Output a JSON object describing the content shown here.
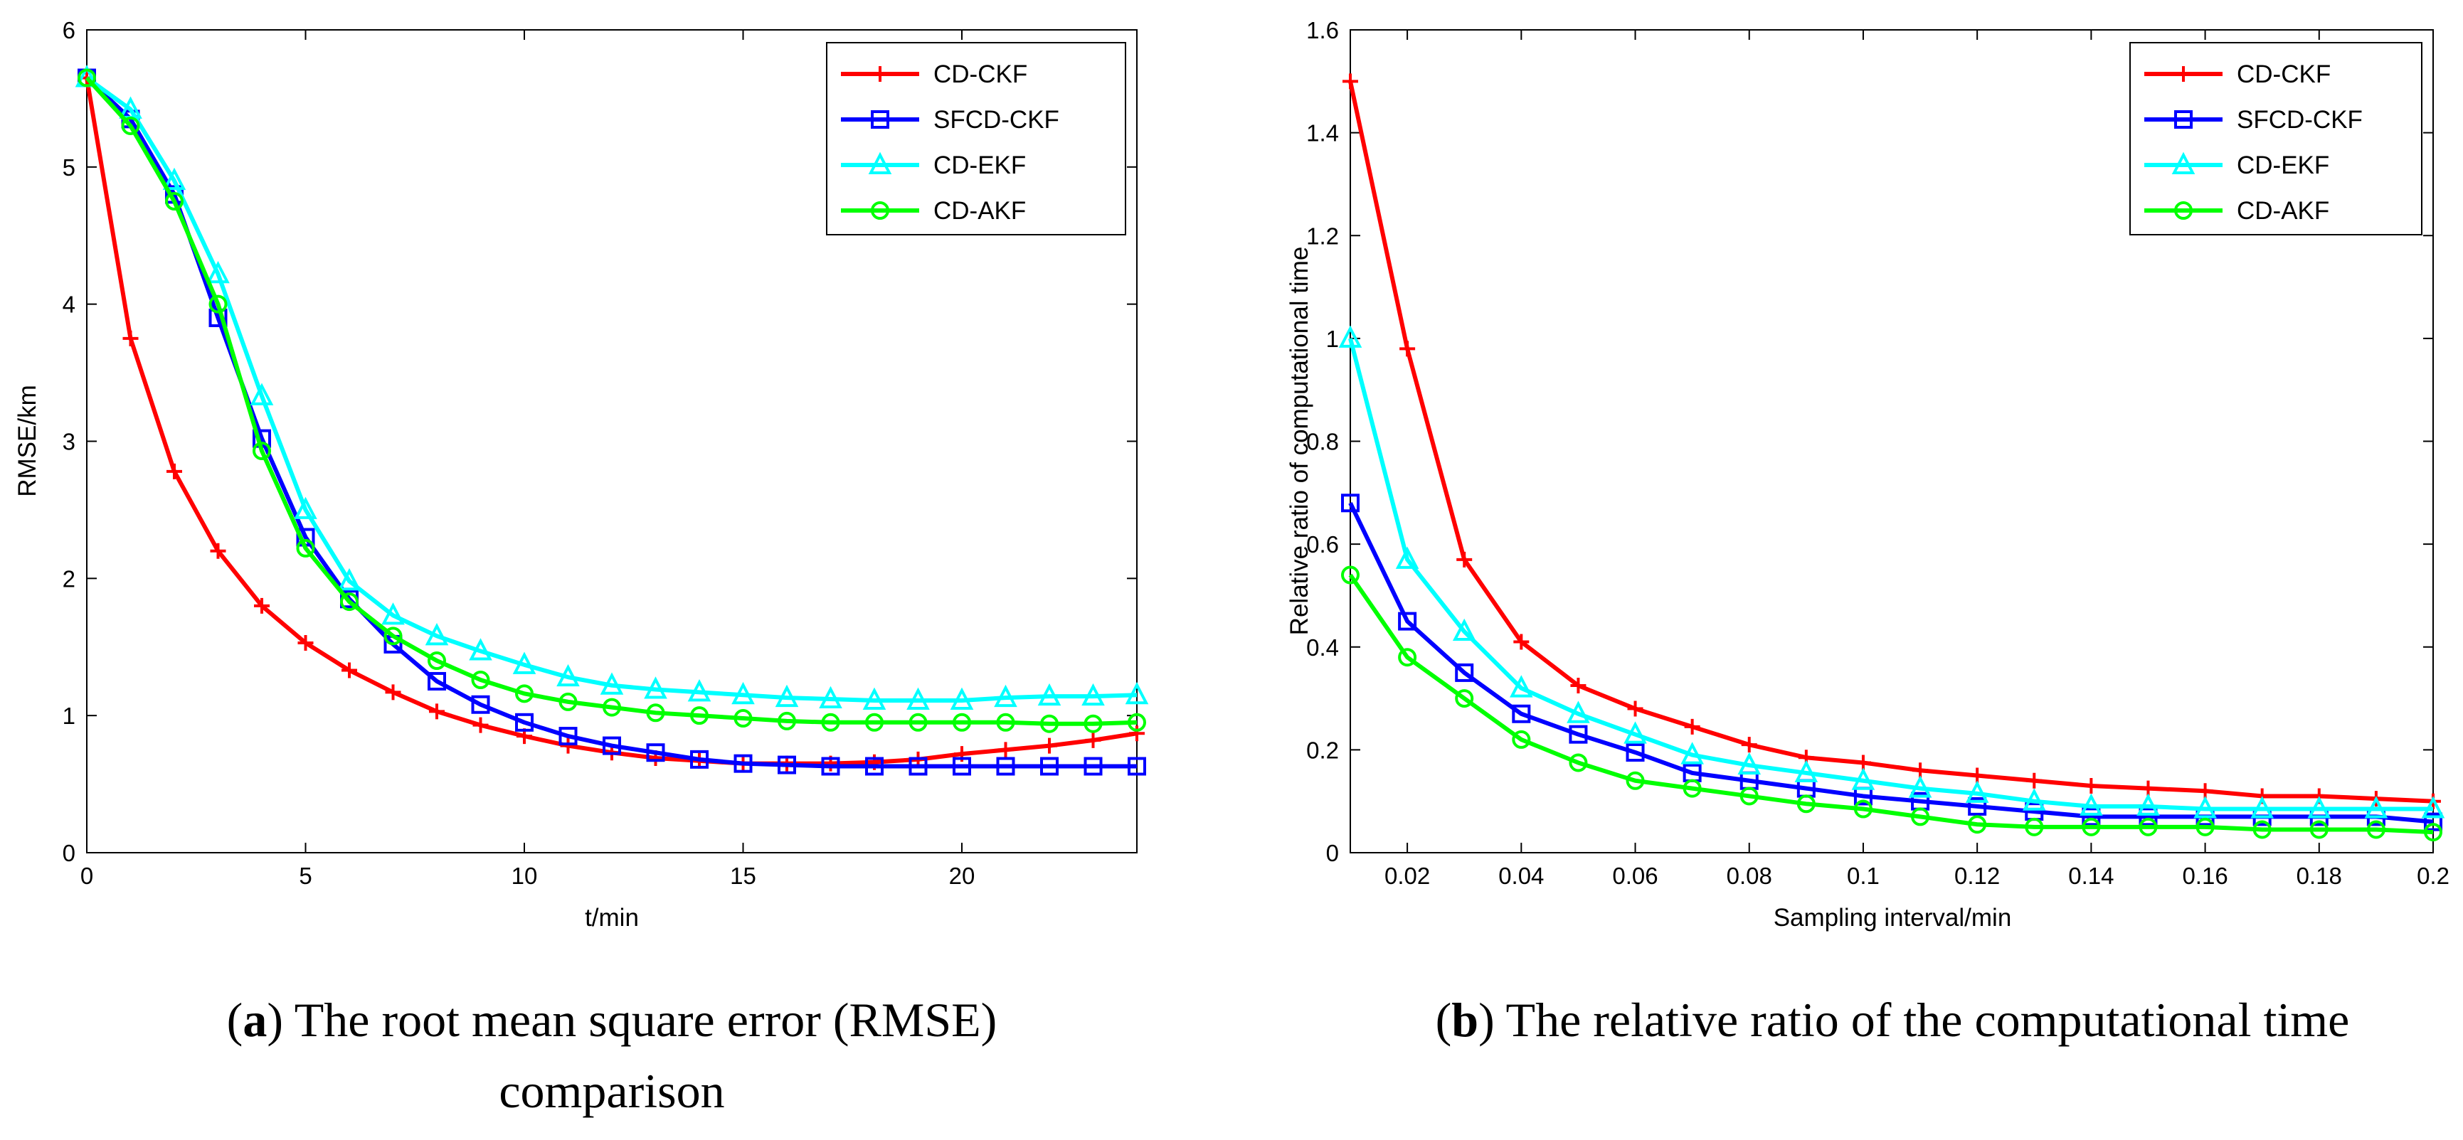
{
  "chart_data": [
    {
      "id": "a",
      "type": "line",
      "xlabel": "t/min",
      "ylabel": "RMSE/km",
      "xlim": [
        0,
        24
      ],
      "ylim": [
        0,
        6
      ],
      "xticks": [
        0,
        5,
        10,
        15,
        20
      ],
      "xtick_labels": [
        "0",
        "5",
        "10",
        "15",
        "20"
      ],
      "yticks": [
        0,
        1,
        2,
        3,
        4,
        5,
        6
      ],
      "ytick_labels": [
        "0",
        "1",
        "2",
        "3",
        "4",
        "5",
        "6"
      ],
      "grid": false,
      "legend": "top-right",
      "x": [
        0,
        1,
        2,
        3,
        4,
        5,
        6,
        7,
        8,
        9,
        10,
        11,
        12,
        13,
        14,
        15,
        16,
        17,
        18,
        19,
        20,
        21,
        22,
        23,
        24
      ],
      "series": [
        {
          "name": "CD-CKF",
          "color": "#ff0000",
          "marker": "plus",
          "values": [
            5.65,
            3.75,
            2.78,
            2.2,
            1.8,
            1.53,
            1.33,
            1.17,
            1.03,
            0.93,
            0.85,
            0.78,
            0.73,
            0.69,
            0.67,
            0.65,
            0.65,
            0.65,
            0.66,
            0.68,
            0.72,
            0.75,
            0.78,
            0.82,
            0.87
          ]
        },
        {
          "name": "SFCD-CKF",
          "color": "#0000ff",
          "marker": "square",
          "values": [
            5.65,
            5.35,
            4.8,
            3.9,
            3.02,
            2.3,
            1.85,
            1.52,
            1.25,
            1.08,
            0.95,
            0.85,
            0.78,
            0.73,
            0.68,
            0.65,
            0.64,
            0.63,
            0.63,
            0.63,
            0.63,
            0.63,
            0.63,
            0.63,
            0.63
          ]
        },
        {
          "name": "CD-EKF",
          "color": "#00ffff",
          "marker": "triangle",
          "values": [
            5.65,
            5.42,
            4.9,
            4.22,
            3.33,
            2.5,
            1.98,
            1.73,
            1.58,
            1.47,
            1.37,
            1.28,
            1.22,
            1.19,
            1.17,
            1.15,
            1.13,
            1.12,
            1.11,
            1.11,
            1.11,
            1.13,
            1.14,
            1.14,
            1.15
          ]
        },
        {
          "name": "CD-AKF",
          "color": "#00ff00",
          "marker": "circle",
          "values": [
            5.65,
            5.3,
            4.75,
            4.0,
            2.93,
            2.22,
            1.83,
            1.58,
            1.4,
            1.26,
            1.16,
            1.1,
            1.06,
            1.02,
            1.0,
            0.98,
            0.96,
            0.95,
            0.95,
            0.95,
            0.95,
            0.95,
            0.94,
            0.94,
            0.95
          ]
        }
      ]
    },
    {
      "id": "b",
      "type": "line",
      "xlabel": "Sampling interval/min",
      "ylabel": "Relative ratio of computational time",
      "xlim": [
        0.01,
        0.2
      ],
      "ylim": [
        0,
        1.6
      ],
      "xticks": [
        0.02,
        0.04,
        0.06,
        0.08,
        0.1,
        0.12,
        0.14,
        0.16,
        0.18,
        0.2
      ],
      "xtick_labels": [
        "0.02",
        "0.04",
        "0.06",
        "0.08",
        "0.1",
        "0.12",
        "0.14",
        "0.16",
        "0.18",
        "0.2"
      ],
      "yticks": [
        0,
        0.2,
        0.4,
        0.6,
        0.8,
        1,
        1.2,
        1.4,
        1.6
      ],
      "ytick_labels": [
        "0",
        "0.2",
        "0.4",
        "0.6",
        "0.8",
        "1",
        "1.2",
        "1.4",
        "1.6"
      ],
      "grid": false,
      "legend": "top-right",
      "x": [
        0.01,
        0.02,
        0.03,
        0.04,
        0.05,
        0.06,
        0.07,
        0.08,
        0.09,
        0.1,
        0.11,
        0.12,
        0.13,
        0.14,
        0.15,
        0.16,
        0.17,
        0.18,
        0.19,
        0.2
      ],
      "series": [
        {
          "name": "CD-CKF",
          "color": "#ff0000",
          "marker": "plus",
          "values": [
            1.5,
            0.98,
            0.57,
            0.41,
            0.325,
            0.28,
            0.245,
            0.21,
            0.185,
            0.175,
            0.16,
            0.15,
            0.14,
            0.13,
            0.125,
            0.12,
            0.11,
            0.11,
            0.105,
            0.1
          ]
        },
        {
          "name": "SFCD-CKF",
          "color": "#0000ff",
          "marker": "square",
          "values": [
            0.68,
            0.45,
            0.35,
            0.27,
            0.23,
            0.195,
            0.155,
            0.14,
            0.125,
            0.11,
            0.1,
            0.09,
            0.08,
            0.07,
            0.07,
            0.07,
            0.07,
            0.07,
            0.07,
            0.06
          ]
        },
        {
          "name": "CD-EKF",
          "color": "#00ffff",
          "marker": "triangle",
          "values": [
            1.0,
            0.57,
            0.43,
            0.32,
            0.27,
            0.23,
            0.19,
            0.17,
            0.155,
            0.14,
            0.125,
            0.115,
            0.1,
            0.09,
            0.09,
            0.085,
            0.085,
            0.085,
            0.085,
            0.085
          ]
        },
        {
          "name": "CD-AKF",
          "color": "#00ff00",
          "marker": "circle",
          "values": [
            0.54,
            0.38,
            0.3,
            0.22,
            0.175,
            0.14,
            0.125,
            0.11,
            0.095,
            0.085,
            0.07,
            0.055,
            0.05,
            0.05,
            0.05,
            0.05,
            0.045,
            0.045,
            0.045,
            0.04
          ]
        }
      ]
    }
  ],
  "captions": [
    {
      "letter": "a",
      "line1": " The root mean square error (RMSE)",
      "line2": "comparison"
    },
    {
      "letter": "b",
      "line1": " The relative ratio of the computational time",
      "line2": ""
    }
  ]
}
